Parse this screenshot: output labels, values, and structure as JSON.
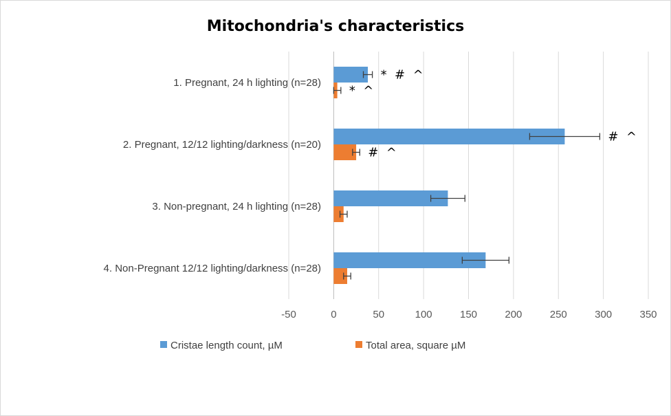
{
  "chart_data": {
    "type": "bar",
    "orientation": "horizontal",
    "title": "Mitochondria's characteristics",
    "categories": [
      "1. Pregnant, 24 h lighting (n=28)",
      "2. Pregnant, 12/12 lighting/darkness (n=20)",
      "3. Non-pregnant, 24 h lighting (n=28)",
      "4. Non-Pregnant 12/12 lighting/darkness (n=28)"
    ],
    "series": [
      {
        "name": "Cristae length count, µM",
        "color": "#5b9bd5",
        "values": [
          38,
          257,
          127,
          169
        ],
        "error": [
          5,
          39,
          19,
          26
        ],
        "annotations": [
          "*  #  ^",
          "#  ^",
          "",
          ""
        ]
      },
      {
        "name": "Total area, square µM",
        "color": "#ed7d31",
        "values": [
          4,
          25,
          11,
          15
        ],
        "error": [
          4,
          4,
          4,
          4
        ],
        "annotations": [
          "*  ^",
          "#  ^",
          "",
          ""
        ]
      }
    ],
    "xlim": [
      -50,
      350
    ],
    "xticks": [
      "-50",
      "0",
      "50",
      "100",
      "150",
      "200",
      "250",
      "300",
      "350"
    ],
    "grid": true,
    "legend_position": "bottom"
  }
}
